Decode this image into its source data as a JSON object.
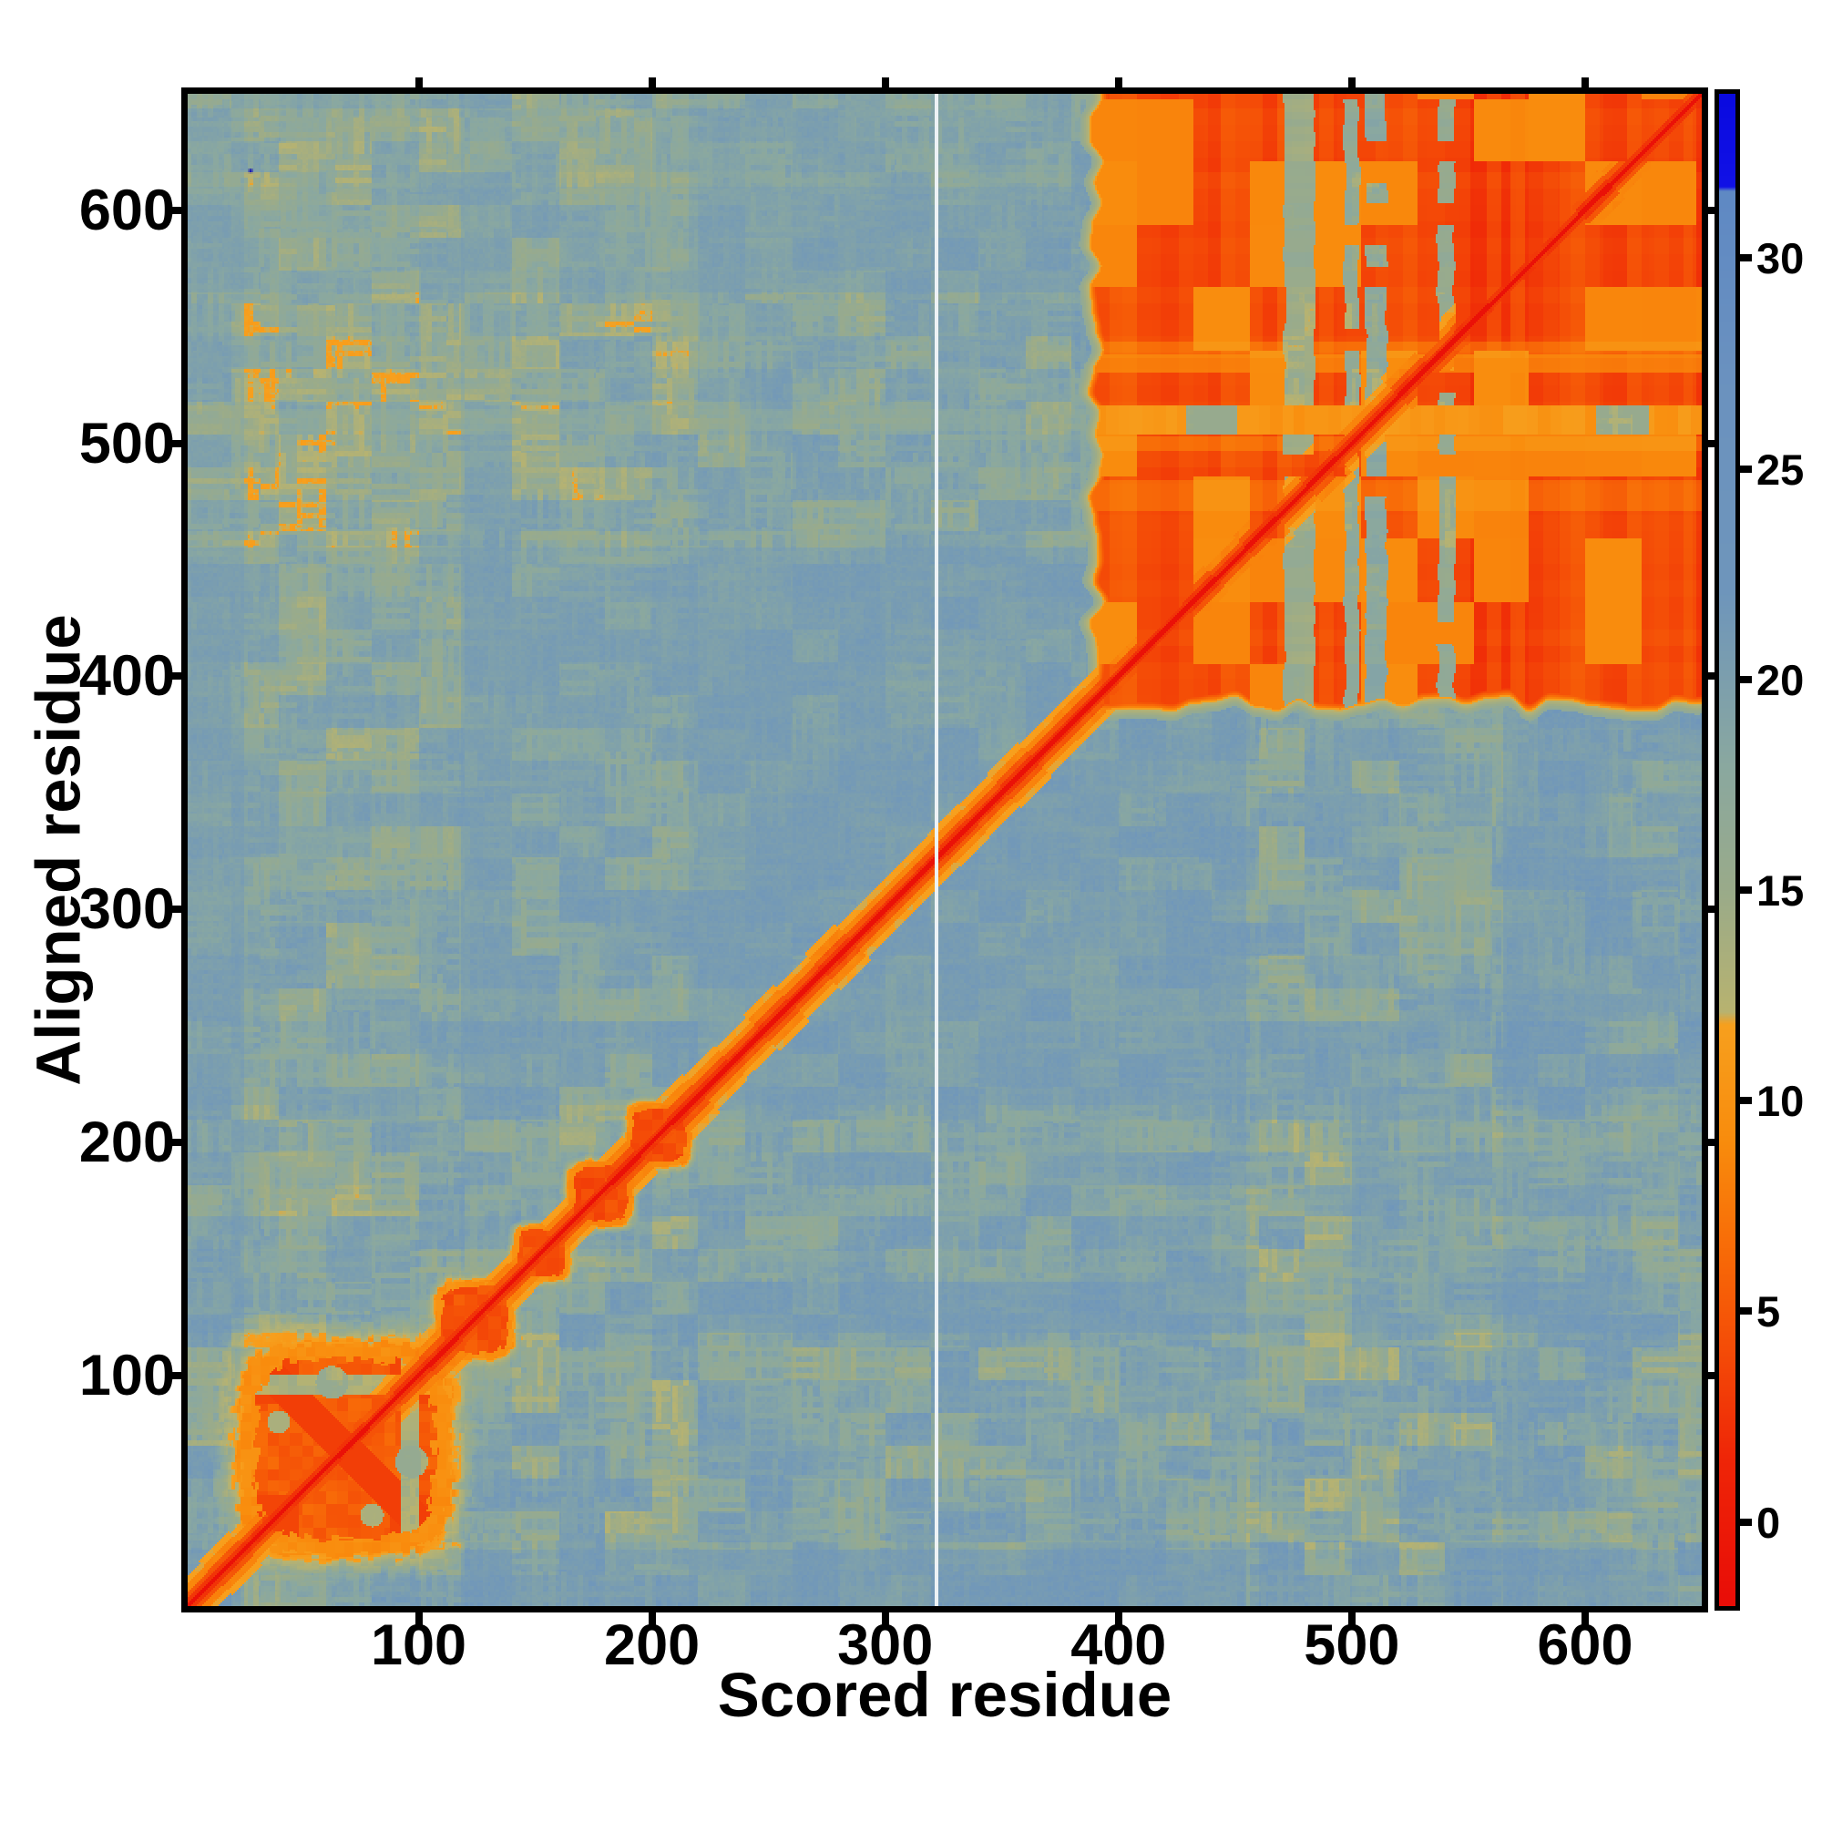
{
  "chart_data": {
    "type": "heatmap",
    "title": "",
    "xlabel": "Scored residue",
    "ylabel": "Aligned residue",
    "x_range": [
      1,
      650
    ],
    "y_range": [
      1,
      650
    ],
    "x_ticks": [
      100,
      200,
      300,
      400,
      500,
      600
    ],
    "y_ticks": [
      100,
      200,
      300,
      400,
      500,
      600
    ],
    "grid": false,
    "legend": "none",
    "colorbar": {
      "position": "right",
      "range": [
        -2.0,
        33.9
      ],
      "ticks": [
        0,
        5,
        10,
        15,
        20,
        25,
        30
      ],
      "stops": [
        [
          -2.0,
          "#e90d07"
        ],
        [
          1.5,
          "#ef2607"
        ],
        [
          4.0,
          "#f44b07"
        ],
        [
          6.5,
          "#f86c08"
        ],
        [
          9.0,
          "#f98c0d"
        ],
        [
          11.8,
          "#f7a01e"
        ],
        [
          12.1,
          "#b8b370"
        ],
        [
          15.0,
          "#9aab8a"
        ],
        [
          18.0,
          "#8aa8a0"
        ],
        [
          22.0,
          "#6f96bb"
        ],
        [
          27.0,
          "#6b92bf"
        ],
        [
          31.6,
          "#5f89c4"
        ],
        [
          31.7,
          "#1212e6"
        ],
        [
          33.9,
          "#0a0ae0"
        ]
      ]
    },
    "matrix_model": {
      "background_value": 22.2,
      "corner_tilt": 1.5,
      "speckle": {
        "amp_base": 1.3,
        "band_ranges": [
          [
            25,
            118
          ],
          [
            140,
            216
          ],
          [
            455,
            565
          ],
          [
            610,
            650
          ]
        ],
        "band_boost": [
          2.0,
          1.2,
          1.8,
          0.9
        ],
        "gain": 2.4,
        "max_drop": 9.0
      },
      "diagonal": {
        "core_value": -1.5,
        "core_halfwidth": 1.3,
        "halos": [
          [
            3.2,
            2.2
          ],
          [
            6.0,
            4.5
          ],
          [
            9.5,
            8.0
          ],
          [
            13.0,
            11.2
          ]
        ]
      },
      "blobs": [
        {
          "range": [
            25,
            112
          ],
          "body": 5.4,
          "ring": 8.6,
          "x_pattern": true,
          "corner_clusters": true,
          "holes": [
            [
              63,
              97,
              7,
              16
            ],
            [
              97,
              63,
              7,
              16
            ],
            [
              40,
              80,
              5,
              13.5
            ],
            [
              80,
              40,
              5,
              13.5
            ]
          ],
          "slits": [
            [
              92,
              100
            ]
          ]
        },
        {
          "range": [
            108,
            140
          ],
          "body": 4.6,
          "ring": 8.8
        },
        {
          "range": [
            141,
            164
          ],
          "body": 4.6,
          "ring": 8.8
        },
        {
          "range": [
            165,
            191
          ],
          "body": 4.2,
          "ring": 8.2
        },
        {
          "range": [
            190,
            216
          ],
          "body": 4.2,
          "ring": 8.2
        }
      ],
      "linker": {
        "range": [
          216,
          391
        ]
      },
      "block": {
        "x_start": 391,
        "y_start": 389,
        "end": 652,
        "base": 5.5,
        "column_mod": 3.4,
        "row_mod": 0.8,
        "orange_patch_value": 8.3,
        "orange_patch_threshold": 0.62,
        "edge_jitter": 7,
        "grey_stripes": [
          {
            "range": [
              471,
              484
            ],
            "strength": 0.75
          },
          {
            "range": [
              497,
              503
            ],
            "strength": 0.9
          },
          {
            "range": [
              506,
              515
            ],
            "strength": 1.0
          },
          {
            "range": [
              537,
              544
            ],
            "strength": 0.85
          }
        ],
        "stripe_value": 18.2,
        "weak_column": {
          "range": [
            568,
            574
          ],
          "value": 8.0
        },
        "h_band_yellow": {
          "range": [
            504,
            516
          ],
          "value": 10.4
        },
        "h_band_weak": {
          "range": [
            530,
            538
          ],
          "value": 8.0
        },
        "h_stripe_mix": 0.3
      },
      "faint_cross_lines": {
        "h_band": {
          "range": [
            505,
            515
          ],
          "value": 15.5,
          "mix": 0.3
        },
        "v_stripe_mix": 0.25,
        "v_stripe_value": 19.0
      },
      "artifacts": {
        "white_line_x": 322,
        "white_color": "#edf2f5",
        "dots": [
          {
            "x": 28,
            "y": 617,
            "color": "#1b1bb4"
          }
        ]
      }
    }
  }
}
